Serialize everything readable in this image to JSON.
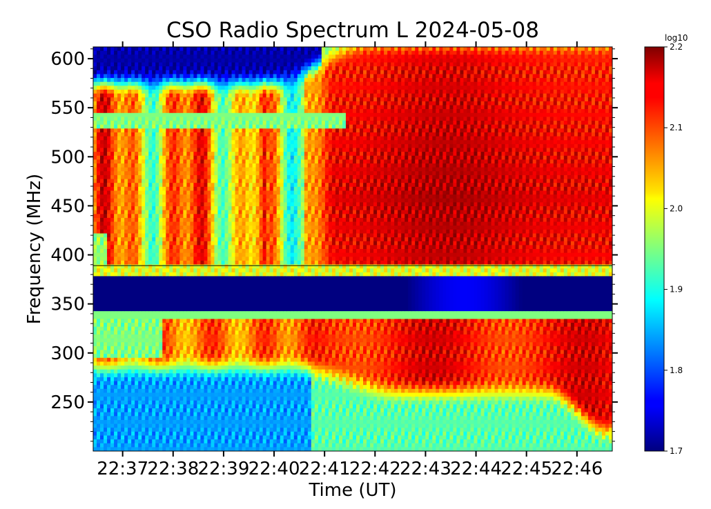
{
  "chart_data": {
    "type": "heatmap",
    "title": "CSO Radio Spectrum L 2024-05-08",
    "xlabel": "Time (UT)",
    "ylabel": "Frequency (MHz)",
    "x_ticks": [
      "22:37",
      "22:38",
      "22:39",
      "22:40",
      "22:41",
      "22:42",
      "22:43",
      "22:44",
      "22:45",
      "22:46"
    ],
    "xlim": [
      "22:36:25",
      "22:46:42"
    ],
    "y_ticks": [
      250,
      300,
      350,
      400,
      450,
      500,
      550,
      600
    ],
    "ylim": [
      200,
      612
    ],
    "colorbar": {
      "label": "log10",
      "colormap": "jet",
      "ticks": [
        "1.7",
        "1.8",
        "1.9",
        "2.0",
        "2.1",
        "2.2"
      ],
      "range": [
        1.7,
        2.2
      ]
    },
    "features": [
      {
        "description": "strong band",
        "freq_range_mhz": [
          342,
          380
        ],
        "value": 1.7
      },
      {
        "description": "high-frequency gap",
        "freq_range_mhz": [
          545,
          612
        ],
        "time_range": [
          "22:36:25",
          "22:40:55"
        ],
        "value": 1.72
      },
      {
        "description": "bright emission",
        "freq_range_mhz": [
          390,
          560
        ],
        "time_range": [
          "22:42:20",
          "22:45:10"
        ],
        "value": 2.18
      },
      {
        "description": "low band",
        "freq_range_mhz": [
          200,
          290
        ],
        "time_range": [
          "22:36:25",
          "22:40:40"
        ],
        "value": 1.85
      }
    ]
  }
}
